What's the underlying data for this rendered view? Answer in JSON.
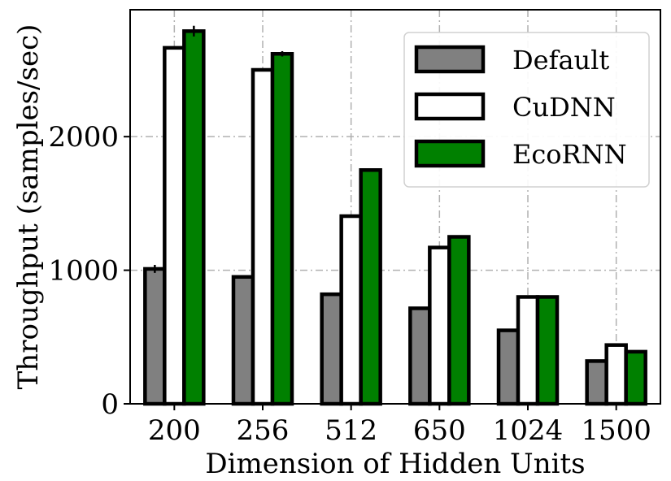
{
  "chart_data": {
    "type": "bar",
    "categories": [
      "200",
      "256",
      "512",
      "650",
      "1024",
      "1500"
    ],
    "series": [
      {
        "name": "Default",
        "values": [
          1010,
          950,
          820,
          715,
          550,
          320
        ],
        "color": "#808080"
      },
      {
        "name": "CuDNN",
        "values": [
          2665,
          2500,
          1405,
          1170,
          800,
          440
        ],
        "color": "#ffffff"
      },
      {
        "name": "EcoRNN",
        "values": [
          2790,
          2620,
          1750,
          1250,
          800,
          390
        ],
        "color": "#008000"
      }
    ],
    "error_bars": {
      "Default": [
        30,
        0,
        0,
        0,
        0,
        0
      ],
      "CuDNN": [
        0,
        0,
        0,
        0,
        0,
        0
      ],
      "EcoRNN": [
        40,
        20,
        0,
        0,
        0,
        0
      ]
    },
    "xlabel": "Dimension of Hidden Units",
    "ylabel": "Throughput (samples/sec)",
    "ylim": [
      0,
      2950
    ],
    "yticks": [
      0,
      1000,
      2000
    ],
    "ytick_labels": [
      "0",
      "1000",
      "2000"
    ],
    "grid": true,
    "legend_position": "top-right"
  }
}
